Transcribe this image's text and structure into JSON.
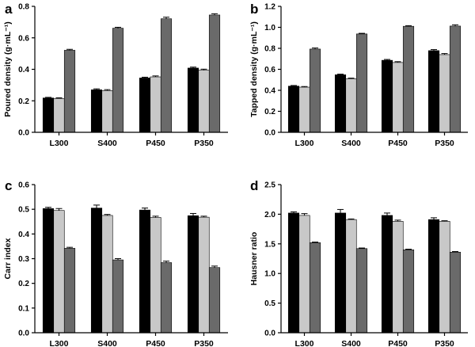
{
  "chart_data": [
    {
      "panel": "a",
      "type": "bar",
      "ylabel": "Poured density (g·mL⁻¹)",
      "ylim": [
        0,
        0.8
      ],
      "yticks": [
        "0.0",
        "0.2",
        "0.4",
        "0.6",
        "0.8"
      ],
      "categories": [
        "L300",
        "S400",
        "P450",
        "P350"
      ],
      "series": [
        {
          "values": [
            0.218,
            0.27,
            0.345,
            0.408
          ],
          "errors": [
            0.004,
            0.006,
            0.005,
            0.006
          ]
        },
        {
          "values": [
            0.215,
            0.265,
            0.352,
            0.395
          ],
          "errors": [
            0.004,
            0.006,
            0.006,
            0.006
          ]
        },
        {
          "values": [
            0.521,
            0.661,
            0.721,
            0.745
          ],
          "errors": [
            0.006,
            0.006,
            0.01,
            0.008
          ]
        }
      ]
    },
    {
      "panel": "b",
      "type": "bar",
      "ylabel": "Tapped density (g·mL⁻¹)",
      "ylim": [
        0,
        1.2
      ],
      "yticks": [
        "0.0",
        "0.2",
        "0.4",
        "0.6",
        "0.8",
        "1.0",
        "1.2"
      ],
      "categories": [
        "L300",
        "S400",
        "P450",
        "P350"
      ],
      "series": [
        {
          "values": [
            0.44,
            0.548,
            0.686,
            0.778
          ],
          "errors": [
            0.006,
            0.006,
            0.008,
            0.01
          ]
        },
        {
          "values": [
            0.43,
            0.51,
            0.665,
            0.74
          ],
          "errors": [
            0.006,
            0.006,
            0.008,
            0.01
          ]
        },
        {
          "values": [
            0.793,
            0.937,
            1.01,
            1.012
          ],
          "errors": [
            0.01,
            0.006,
            0.006,
            0.012
          ]
        }
      ]
    },
    {
      "panel": "c",
      "type": "bar",
      "ylabel": "Carr index",
      "ylim": [
        0,
        0.6
      ],
      "yticks": [
        "0.0",
        "0.1",
        "0.2",
        "0.3",
        "0.4",
        "0.5",
        "0.6"
      ],
      "categories": [
        "L300",
        "S400",
        "P450",
        "P350"
      ],
      "series": [
        {
          "values": [
            0.503,
            0.505,
            0.497,
            0.474
          ],
          "errors": [
            0.005,
            0.012,
            0.008,
            0.009
          ]
        },
        {
          "values": [
            0.495,
            0.475,
            0.467,
            0.468
          ],
          "errors": [
            0.008,
            0.004,
            0.005,
            0.004
          ]
        },
        {
          "values": [
            0.342,
            0.295,
            0.284,
            0.264
          ],
          "errors": [
            0.004,
            0.005,
            0.006,
            0.006
          ]
        }
      ]
    },
    {
      "panel": "d",
      "type": "bar",
      "ylabel": "Hausner ratio",
      "ylim": [
        0,
        2.5
      ],
      "yticks": [
        "0.0",
        "0.5",
        "1.0",
        "1.5",
        "2.0",
        "2.5"
      ],
      "categories": [
        "L300",
        "S400",
        "P450",
        "P350"
      ],
      "series": [
        {
          "values": [
            2.02,
            2.02,
            1.98,
            1.91
          ],
          "errors": [
            0.02,
            0.06,
            0.04,
            0.03
          ]
        },
        {
          "values": [
            1.98,
            1.91,
            1.88,
            1.88
          ],
          "errors": [
            0.03,
            0.01,
            0.02,
            0.01
          ]
        },
        {
          "values": [
            1.52,
            1.42,
            1.4,
            1.36
          ],
          "errors": [
            0.01,
            0.01,
            0.01,
            0.01
          ]
        }
      ]
    }
  ],
  "colors": {
    "series": [
      "#000000",
      "#c8c8c8",
      "#6a6a6a"
    ],
    "axis": "#000000"
  }
}
